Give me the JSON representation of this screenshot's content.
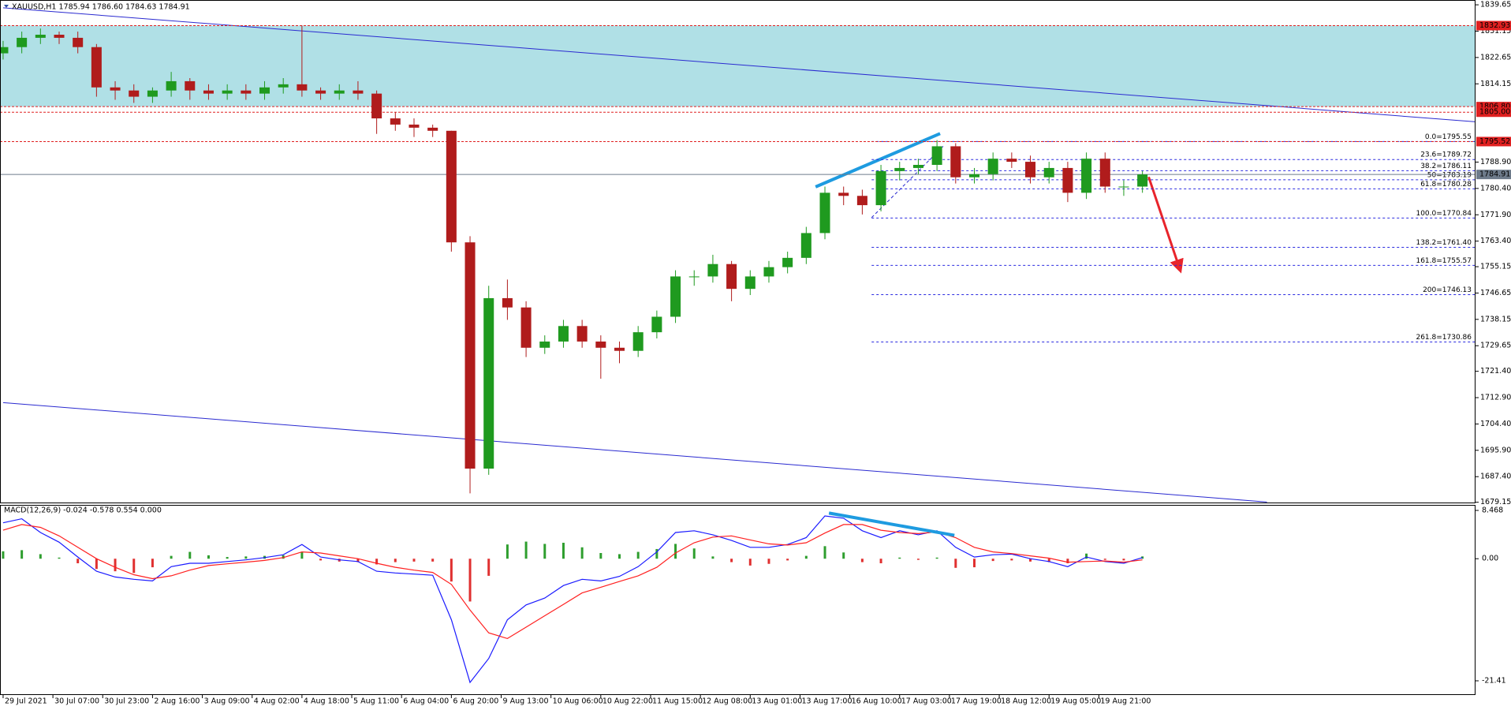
{
  "chart_data": [
    {
      "type": "candlestick",
      "title": "XAUUSD,H1  1785.94 1786.60 1784.63 1784.91",
      "x": [
        0,
        6,
        12,
        18,
        24,
        30,
        36,
        42,
        48,
        54,
        60,
        66,
        72,
        78,
        84,
        90,
        96,
        102,
        108,
        114,
        120,
        126,
        132,
        138,
        144,
        150,
        156,
        162,
        168,
        174,
        180,
        186,
        192,
        198,
        204,
        210,
        216,
        222,
        228,
        234,
        240,
        246,
        252,
        258,
        264,
        270,
        276,
        282,
        288,
        294,
        300,
        306,
        312,
        318,
        324,
        330,
        336,
        342,
        348,
        354,
        360,
        366
      ],
      "open": [
        1824,
        1826,
        1829,
        1830,
        1829,
        1826,
        1813,
        1812,
        1810,
        1812,
        1815,
        1812,
        1811,
        1812,
        1811,
        1813,
        1814,
        1812,
        1811,
        1812,
        1811,
        1803,
        1801,
        1800,
        1799,
        1763,
        1690,
        1745,
        1742,
        1729,
        1731,
        1736,
        1731,
        1729,
        1728,
        1734,
        1739,
        1752,
        1752,
        1756,
        1748,
        1752,
        1755,
        1758,
        1766,
        1779,
        1778,
        1775,
        1786,
        1787,
        1788,
        1794,
        1784,
        1785,
        1790,
        1789,
        1784,
        1787,
        1779,
        1790,
        1781,
        1781
      ],
      "high": [
        1828,
        1831,
        1832,
        1831,
        1831,
        1827,
        1815,
        1814,
        1813,
        1818,
        1816,
        1814,
        1814,
        1814,
        1815,
        1816,
        1833,
        1813,
        1814,
        1815,
        1812,
        1805,
        1803,
        1801,
        1799,
        1765,
        1749,
        1751,
        1744,
        1733,
        1738,
        1738,
        1733,
        1731,
        1736,
        1741,
        1754,
        1754,
        1759,
        1757,
        1754,
        1757,
        1760,
        1768,
        1781,
        1781,
        1780,
        1788,
        1789,
        1790,
        1796,
        1795,
        1787,
        1792,
        1792,
        1791,
        1789,
        1789,
        1792,
        1792,
        1783,
        1786
      ],
      "low": [
        1822,
        1824,
        1827,
        1827,
        1824,
        1810,
        1809,
        1808,
        1808,
        1810,
        1809,
        1809,
        1809,
        1809,
        1809,
        1811,
        1810,
        1809,
        1809,
        1809,
        1798,
        1799,
        1797,
        1797,
        1760,
        1682,
        1688,
        1738,
        1726,
        1727,
        1729,
        1729,
        1719,
        1724,
        1726,
        1732,
        1737,
        1749,
        1750,
        1744,
        1746,
        1750,
        1753,
        1756,
        1764,
        1775,
        1772,
        1773,
        1783,
        1785,
        1786,
        1782,
        1782,
        1783,
        1787,
        1782,
        1782,
        1776,
        1777,
        1779,
        1778,
        1779
      ],
      "close": [
        1826,
        1829,
        1830,
        1829,
        1826,
        1813,
        1812,
        1810,
        1812,
        1815,
        1812,
        1811,
        1812,
        1811,
        1813,
        1814,
        1812,
        1811,
        1812,
        1811,
        1803,
        1801,
        1800,
        1799,
        1763,
        1690,
        1745,
        1742,
        1729,
        1731,
        1736,
        1731,
        1729,
        1728,
        1734,
        1739,
        1752,
        1752,
        1756,
        1748,
        1752,
        1755,
        1758,
        1766,
        1779,
        1778,
        1775,
        1786,
        1787,
        1788,
        1794,
        1784,
        1785,
        1790,
        1789,
        1784,
        1787,
        1779,
        1790,
        1781,
        1781,
        1784.91
      ],
      "up_color": "#1f9a1f",
      "down_color": "#b01c1c",
      "xlim": [
        -1,
        473
      ],
      "ylim": [
        1678.8,
        1841.2
      ],
      "xticks": [
        {
          "value": 0,
          "label": "29 Jul 2021"
        },
        {
          "value": 16,
          "label": "30 Jul 07:00"
        },
        {
          "value": 32,
          "label": "30 Jul 23:00"
        },
        {
          "value": 48,
          "label": "2 Aug 16:00"
        },
        {
          "value": 64,
          "label": "3 Aug 09:00"
        },
        {
          "value": 80,
          "label": "4 Aug 02:00"
        },
        {
          "value": 96,
          "label": "4 Aug 18:00"
        },
        {
          "value": 112,
          "label": "5 Aug 11:00"
        },
        {
          "value": 128,
          "label": "6 Aug 04:00"
        },
        {
          "value": 144,
          "label": "6 Aug 20:00"
        },
        {
          "value": 160,
          "label": "9 Aug 13:00"
        },
        {
          "value": 176,
          "label": "10 Aug 06:00"
        },
        {
          "value": 192,
          "label": "10 Aug 22:00"
        },
        {
          "value": 208,
          "label": "11 Aug 15:00"
        },
        {
          "value": 224,
          "label": "12 Aug 08:00"
        },
        {
          "value": 240,
          "label": "13 Aug 01:00"
        },
        {
          "value": 256,
          "label": "13 Aug 17:00"
        },
        {
          "value": 272,
          "label": "16 Aug 10:00"
        },
        {
          "value": 288,
          "label": "17 Aug 03:00"
        },
        {
          "value": 304,
          "label": "17 Aug 19:00"
        },
        {
          "value": 320,
          "label": "18 Aug 12:00"
        },
        {
          "value": 336,
          "label": "19 Aug 05:00"
        },
        {
          "value": 352,
          "label": "19 Aug 21:00"
        }
      ],
      "yticks": [
        1839.65,
        1831.15,
        1822.65,
        1814.15,
        {
          "value": 1788.9,
          "label": "1788.90"
        },
        {
          "value": 1780.4,
          "label": "1780.40"
        },
        {
          "value": 1771.9,
          "label": "1771.90"
        },
        {
          "value": 1763.4,
          "label": "1763.40"
        },
        1755.15,
        1746.65,
        1738.15,
        1729.65,
        {
          "value": 1721.4,
          "label": "1721.40"
        },
        {
          "value": 1712.9,
          "label": "1712.90"
        },
        {
          "value": 1704.4,
          "label": "1704.40"
        },
        {
          "value": 1695.9,
          "label": "1695.90"
        },
        {
          "value": 1687.4,
          "label": "1687.40"
        },
        1679.15
      ],
      "levels": [
        {
          "value": 1832.93,
          "label": "1832.93"
        },
        {
          "value": 1806.8,
          "label": "1806.80"
        },
        {
          "value": 1805,
          "label": "1805.00"
        },
        {
          "value": 1795.52,
          "label": "1795.52"
        }
      ],
      "level_color": "#e02020",
      "zone_color": "#b0e0e6",
      "current": {
        "value": 1784.91,
        "label": "1784.91",
        "color": "#6e7b8b"
      },
      "fib": {
        "start": 279,
        "color": "#2a2ae0",
        "levels": [
          {
            "value": 1795.55,
            "label": "0.0=1795.55"
          },
          {
            "value": 1789.72,
            "label": "23.6=1789.72"
          },
          {
            "value": 1786.11,
            "label": "38.2=1786.11"
          },
          {
            "value": 1783.19,
            "label": "50=1783.19"
          },
          {
            "value": 1780.28,
            "label": "61.8=1780.28"
          },
          {
            "value": 1770.84,
            "label": "100.0=1770.84"
          },
          {
            "value": 1761.4,
            "label": "138.2=1761.40"
          },
          {
            "value": 1755.57,
            "label": "161.8=1755.57"
          },
          {
            "value": 1746.13,
            "label": "200=1746.13"
          },
          {
            "value": 1730.86,
            "label": "261.8=1730.86"
          }
        ]
      },
      "drawings": [
        {
          "style": "thin",
          "color": "#2a2ad0",
          "points": [
            [
              0,
              1838.7
            ],
            [
              473,
              1801.9
            ]
          ]
        },
        {
          "style": "thin",
          "color": "#2a2ad0",
          "points": [
            [
              0,
              1711.3
            ],
            [
              406,
              1679.2
            ]
          ]
        },
        {
          "style": "thick",
          "color": "#1e9be0",
          "points": [
            [
              261,
              1780.9
            ],
            [
              301,
              1798.1
            ]
          ]
        },
        {
          "style": "dashed",
          "color": "#2a2ad0",
          "points": [
            [
              279,
              1771
            ],
            [
              302,
              1794
            ]
          ]
        },
        {
          "style": "arrow",
          "color": "#e8242b",
          "points": [
            [
              368,
              1784.1
            ],
            [
              378,
              1754.4
            ]
          ]
        }
      ]
    },
    {
      "type": "macd",
      "title": "MACD(12,26,9) -0.024 -0.578 0.554 0.000",
      "ylim": [
        -23.9,
        9.3
      ],
      "yticks": [
        8.468,
        {
          "value": 0,
          "label": "0.00"
        },
        -21.41
      ],
      "histogram": [
        1.3,
        1.5,
        0.8,
        0.2,
        -0.8,
        -1.8,
        -2.2,
        -2.5,
        -1.5,
        0.5,
        1.2,
        0.6,
        0.3,
        0.4,
        0.5,
        0.6,
        1.2,
        -0.3,
        -0.5,
        -0.6,
        -1,
        -0.6,
        -0.5,
        -0.5,
        -4,
        -7.5,
        -3,
        2.5,
        3,
        2.6,
        2.8,
        2,
        1,
        0.8,
        1.2,
        1.7,
        2.6,
        1.8,
        0.4,
        -0.6,
        -1.2,
        -0.9,
        -0.3,
        0.5,
        2.2,
        1.1,
        -0.6,
        -0.8,
        0.2,
        -0.2,
        0.2,
        -1.6,
        -1.5,
        -0.4,
        -0.3,
        -0.5,
        -0.6,
        -0.8,
        0.9,
        -0.2,
        -0.3,
        0.4
      ],
      "hist_up_color": "#2e9e2e",
      "hist_down_color": "#e03030",
      "series": [
        {
          "color": "#1a1aff",
          "values": [
            6.3,
            7,
            4.6,
            2.9,
            0.3,
            -2.2,
            -3.2,
            -3.6,
            -3.9,
            -1.4,
            -0.8,
            -0.8,
            -0.5,
            -0.2,
            0.2,
            0.7,
            2.5,
            0.3,
            -0.2,
            -0.5,
            -2.2,
            -2.5,
            -2.7,
            -2.9,
            -10.7,
            -21.7,
            -17.5,
            -10.7,
            -8.1,
            -6.9,
            -4.7,
            -3.6,
            -3.9,
            -3.1,
            -1.4,
            1.2,
            4.6,
            4.9,
            4.2,
            3.2,
            2,
            2,
            2.5,
            3.7,
            7.5,
            7.1,
            4.9,
            3.7,
            4.9,
            4.2,
            4.9,
            2,
            0.3,
            0.7,
            0.8,
            0,
            -0.5,
            -1.4,
            0.3,
            -0.5,
            -0.8,
            0.2
          ]
        },
        {
          "color": "#ff2020",
          "values": [
            5,
            6,
            5.5,
            4,
            2,
            0,
            -1.5,
            -2.8,
            -3.5,
            -3,
            -2,
            -1.2,
            -0.9,
            -0.6,
            -0.3,
            0.2,
            1.2,
            1,
            0.5,
            0,
            -0.8,
            -1.5,
            -2,
            -2.4,
            -4.5,
            -9,
            -13,
            -14,
            -12,
            -10,
            -8,
            -6,
            -5,
            -4,
            -3,
            -1.5,
            1,
            2.8,
            3.8,
            4,
            3.3,
            2.6,
            2.4,
            2.8,
            4.5,
            6,
            6,
            5,
            4.6,
            4.4,
            4.7,
            3.7,
            2,
            1.2,
            0.9,
            0.5,
            0.1,
            -0.6,
            -0.5,
            -0.4,
            -0.6,
            -0.2
          ]
        }
      ],
      "drawings": [
        {
          "style": "thick",
          "color": "#1e9be0",
          "points": [
            [
              265.3,
              8
            ],
            [
              305.6,
              4.1
            ]
          ]
        }
      ]
    }
  ]
}
